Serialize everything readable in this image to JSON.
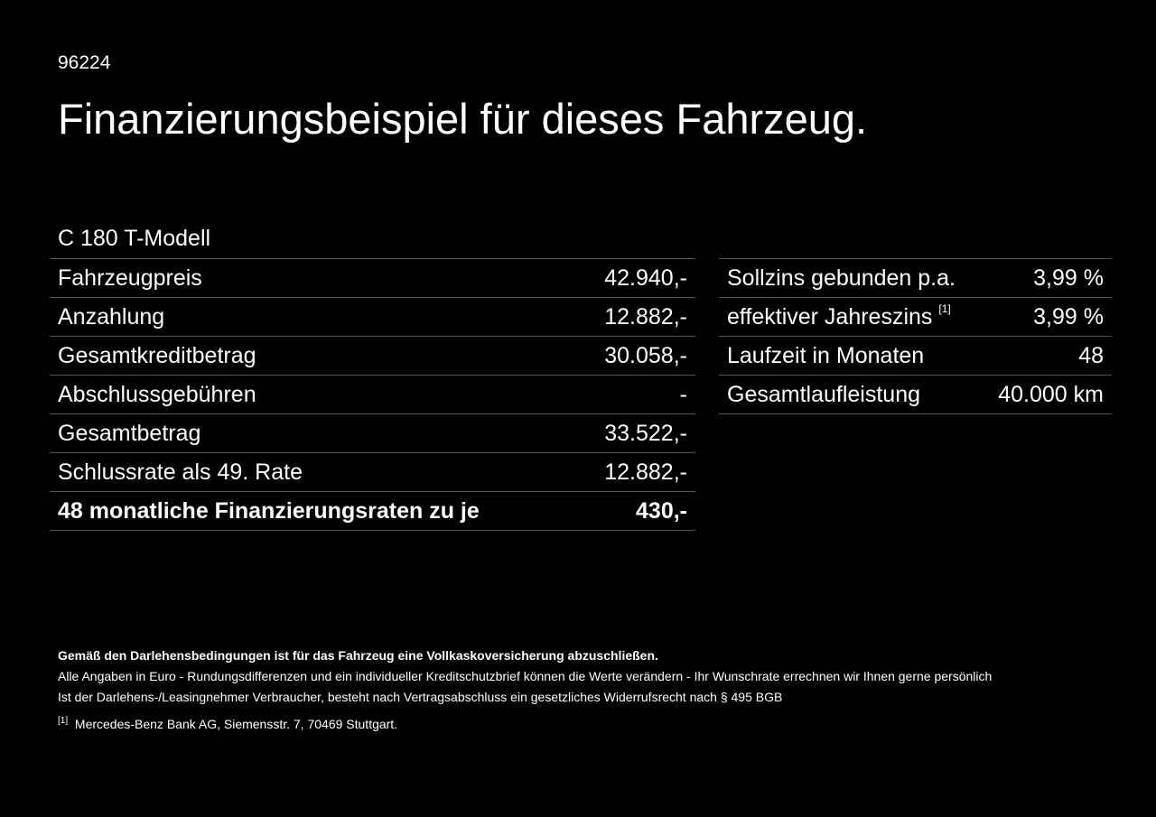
{
  "code": "96224",
  "title": "Finanzierungsbeispiel für dieses Fahrzeug.",
  "model": "C 180 T-Modell",
  "left_rows": [
    {
      "label": "Fahrzeugpreis",
      "value": "42.940,-"
    },
    {
      "label": "Anzahlung",
      "value": "12.882,-"
    },
    {
      "label": "Gesamtkreditbetrag",
      "value": "30.058,-"
    },
    {
      "label": "Abschlussgebühren",
      "value": "-"
    },
    {
      "label": "Gesamtbetrag",
      "value": "33.522,-"
    },
    {
      "label": "Schlussrate als 49. Rate",
      "value": "12.882,-"
    },
    {
      "label": "48 monatliche Finanzierungsraten zu je",
      "value": "430,-"
    }
  ],
  "right_rows": [
    {
      "label": "Sollzins gebunden p.a.",
      "value": "3,99 %"
    },
    {
      "label": "effektiver Jahreszins",
      "sup": "[1]",
      "value": "3,99 %"
    },
    {
      "label": "Laufzeit in Monaten",
      "value": "48"
    },
    {
      "label": "Gesamtlaufleistung",
      "value": "40.000 km"
    }
  ],
  "notes": {
    "bold": "Gemäß den Darlehensbedingungen ist für das Fahrzeug eine Vollkaskoversicherung abzuschließen.",
    "line1": "Alle Angaben in Euro - Rundungsdifferenzen und ein individueller Kreditschutzbrief können die Werte verändern - Ihr Wunschrate errechnen wir Ihnen gerne persönlich",
    "line2": "Ist der Darlehens-/Leasingnehmer Verbraucher, besteht nach Vertragsabschluss ein gesetzliches Widerrufsrecht nach § 495 BGB",
    "footnote_mark": "[1]",
    "footnote": "Mercedes-Benz Bank AG, Siemensstr. 7, 70469 Stuttgart."
  }
}
